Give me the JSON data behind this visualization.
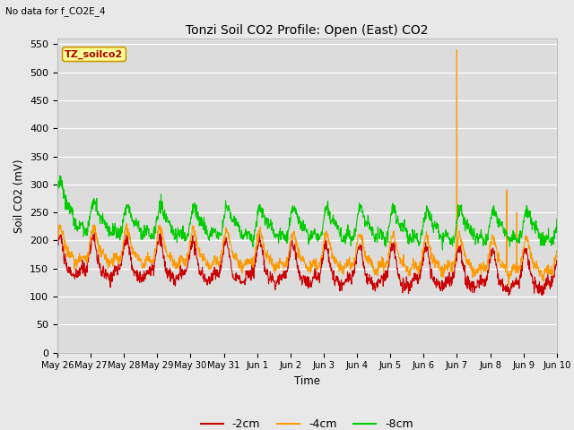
{
  "title": "Tonzi Soil CO2 Profile: Open (East) CO2",
  "subtitle": "No data for f_CO2E_4",
  "ylabel": "Soil CO2 (mV)",
  "xlabel": "Time",
  "legend_label": "TZ_soilco2",
  "ylim": [
    0,
    560
  ],
  "yticks": [
    0,
    50,
    100,
    150,
    200,
    250,
    300,
    350,
    400,
    450,
    500,
    550
  ],
  "line_colors": {
    "-2cm": "#cc0000",
    "-4cm": "#ff9900",
    "-8cm": "#00cc00"
  },
  "background_color": "#e8e8e8",
  "tick_labels": [
    "May 26",
    "May 27",
    "May 28",
    "May 29",
    "May 30",
    "May 31",
    "Jun 1",
    "Jun 2",
    "Jun 3",
    "Jun 4",
    "Jun 5",
    "Jun 6",
    "Jun 7",
    "Jun 8",
    "Jun 9",
    "Jun 10"
  ],
  "tick_positions": [
    0,
    1,
    2,
    3,
    4,
    5,
    6,
    7,
    8,
    9,
    10,
    11,
    12,
    13,
    14,
    15
  ]
}
